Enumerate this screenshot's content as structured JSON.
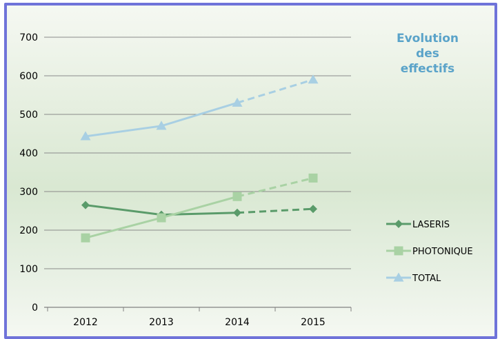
{
  "chart_data": {
    "type": "line",
    "title": [
      "Evolution",
      "des",
      "effectifs"
    ],
    "categories": [
      "2012",
      "2013",
      "2014",
      "2015"
    ],
    "ylim": [
      0,
      700
    ],
    "yticks": [
      "0",
      "100",
      "200",
      "300",
      "400",
      "500",
      "600",
      "700"
    ],
    "grid": true,
    "legend_position": "bottom-right",
    "projected_segment": [
      "2014",
      "2015"
    ],
    "series": [
      {
        "name": "LASERIS",
        "values": [
          265,
          240,
          245,
          255
        ],
        "color": "#5a9b6a",
        "marker": "diamond"
      },
      {
        "name": "PHOTONIQUE",
        "values": [
          180,
          232,
          287,
          335
        ],
        "color": "#a9d2a4",
        "marker": "square"
      },
      {
        "name": "TOTAL",
        "values": [
          443,
          470,
          530,
          590
        ],
        "color": "#a8cfe3",
        "marker": "triangle"
      }
    ]
  }
}
